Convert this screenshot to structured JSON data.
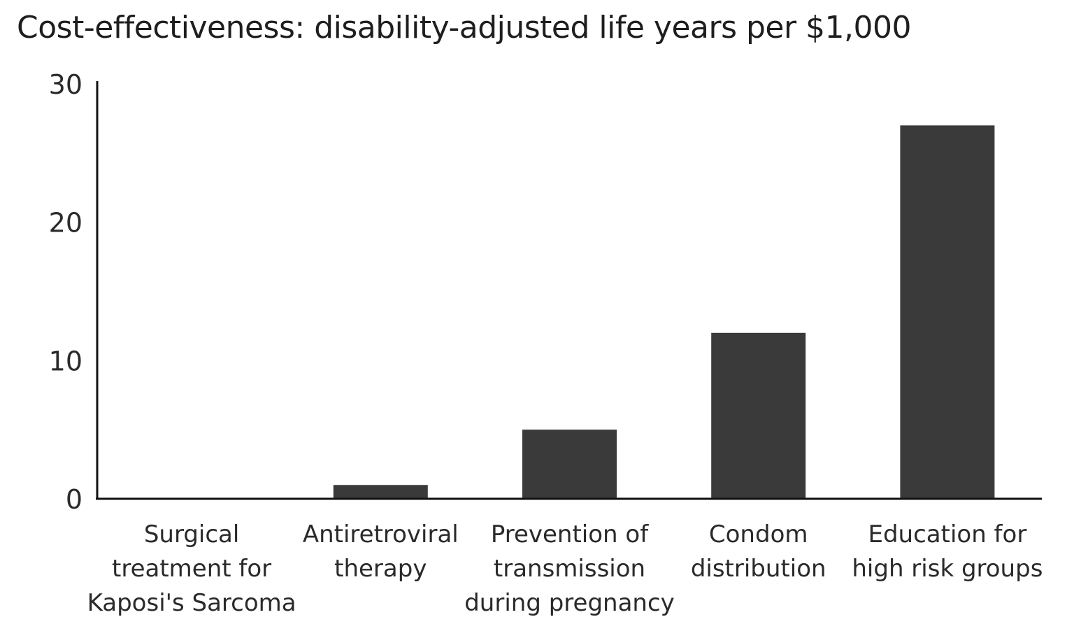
{
  "chart_data": {
    "type": "bar",
    "title": "Cost-effectiveness: disability-adjusted life years per $1,000",
    "xlabel": "",
    "ylabel": "",
    "categories": [
      [
        "Surgical",
        "treatment for",
        "Kaposi's Sarcoma"
      ],
      [
        "Antiretroviral",
        "therapy"
      ],
      [
        "Prevention of",
        "transmission",
        "during pregnancy"
      ],
      [
        "Condom",
        "distribution"
      ],
      [
        "Education for",
        "high risk groups"
      ]
    ],
    "values": [
      0.02,
      1,
      5,
      12,
      27
    ],
    "ylim": [
      0,
      30
    ],
    "yticks": [
      0,
      10,
      20,
      30
    ],
    "grid": false,
    "bar_color": "#3a3a3a",
    "axis_color": "#111111"
  }
}
